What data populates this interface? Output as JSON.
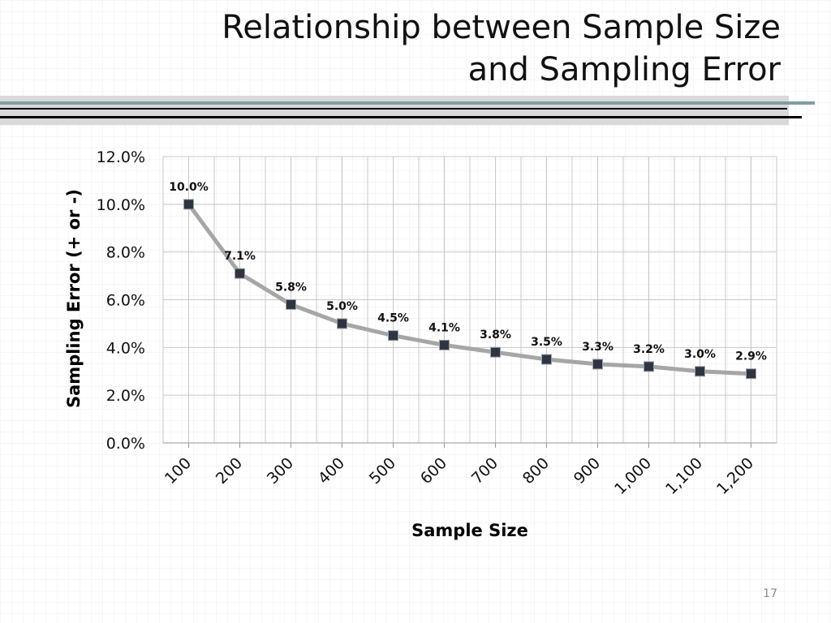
{
  "slide": {
    "title_line1": "Relationship between Sample Size",
    "title_line2": "and Sampling Error",
    "page_number": "17"
  },
  "colors": {
    "line": "#a6a6a6",
    "marker": "#2e3440",
    "grid": "#c8c8c8",
    "rule_accent": "#7f9ea4",
    "rule_dark": "#000000",
    "rule_band": "#d9d9d9"
  },
  "chart_data": {
    "type": "line",
    "title": "",
    "xlabel": "Sample Size",
    "ylabel": "Sampling Error (+ or -)",
    "categories": [
      "100",
      "200",
      "300",
      "400",
      "500",
      "600",
      "700",
      "800",
      "900",
      "1,000",
      "1,100",
      "1,200"
    ],
    "series": [
      {
        "name": "Sampling Error",
        "values": [
          10.0,
          7.1,
          5.8,
          5.0,
          4.5,
          4.1,
          3.8,
          3.5,
          3.3,
          3.2,
          3.0,
          2.9
        ],
        "labels": [
          "10.0%",
          "7.1%",
          "5.8%",
          "5.0%",
          "4.5%",
          "4.1%",
          "3.8%",
          "3.5%",
          "3.3%",
          "3.2%",
          "3.0%",
          "2.9%"
        ]
      }
    ],
    "ylim": [
      0,
      12
    ],
    "yticks": [
      0,
      2,
      4,
      6,
      8,
      10,
      12
    ],
    "ytick_labels": [
      "0.0%",
      "2.0%",
      "4.0%",
      "6.0%",
      "8.0%",
      "10.0%",
      "12.0%"
    ],
    "grid": true,
    "marker": "square",
    "legend": "none"
  }
}
